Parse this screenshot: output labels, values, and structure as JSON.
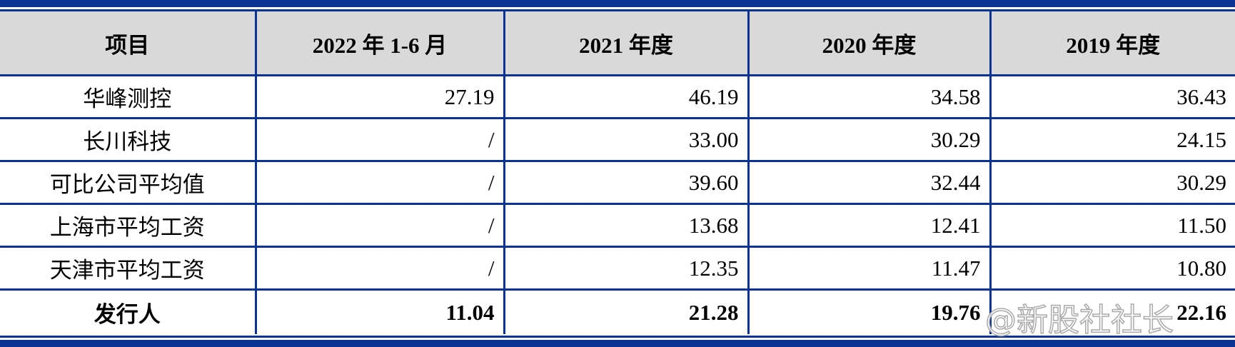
{
  "table": {
    "headers": [
      "项目",
      "2022 年 1-6 月",
      "2021 年度",
      "2020 年度",
      "2019 年度"
    ],
    "rows": [
      [
        "华峰测控",
        "27.19",
        "46.19",
        "34.58",
        "36.43"
      ],
      [
        "长川科技",
        "/",
        "33.00",
        "30.29",
        "24.15"
      ],
      [
        "可比公司平均值",
        "/",
        "39.60",
        "32.44",
        "30.29"
      ],
      [
        "上海市平均工资",
        "/",
        "13.68",
        "12.41",
        "11.50"
      ],
      [
        "天津市平均工资",
        "/",
        "12.35",
        "11.47",
        "10.80"
      ],
      [
        "发行人",
        "11.04",
        "21.28",
        "19.76",
        "22.16"
      ]
    ],
    "bold_row_index": 5
  },
  "watermark": {
    "text": "@新股社社长",
    "logo": "du"
  },
  "colors": {
    "rule": "#0a3394",
    "header_bg": "#d9d9d9"
  }
}
